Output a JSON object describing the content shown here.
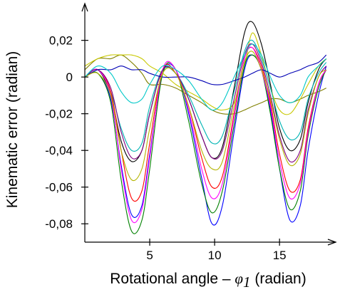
{
  "chart_data": {
    "type": "line",
    "title": "",
    "xlabel": {
      "prefix": "Rotational angle – ",
      "symbol": "φ",
      "subscript": "1",
      "suffix": " (radian)"
    },
    "ylabel": "Kinematic error (radian)",
    "xlim": [
      0,
      19
    ],
    "ylim": [
      -0.09,
      0.035
    ],
    "xticks": [
      5,
      10,
      15
    ],
    "xtick_labels": [
      "5",
      "10",
      "15"
    ],
    "yticks": [
      0.02,
      0,
      -0.02,
      -0.04,
      -0.06,
      -0.08
    ],
    "ytick_labels": [
      "0,02",
      "0",
      "-0,02",
      "-0,04",
      "-0,06",
      "-0,08"
    ],
    "grid": false,
    "legend": "none",
    "series": [
      {
        "color": "#000000",
        "x": [
          0,
          1,
          2,
          2.8,
          3.6,
          4.4,
          5,
          6,
          7,
          8,
          9,
          9.8,
          10.6,
          11.5,
          12.3,
          12.9,
          13.6,
          14.3,
          15,
          15.8,
          16.6,
          17.2,
          18,
          18.6
        ],
        "y": [
          0,
          0.004,
          -0.01,
          -0.035,
          -0.046,
          -0.04,
          -0.02,
          0.004,
          0.002,
          -0.012,
          -0.032,
          -0.044,
          -0.038,
          -0.006,
          0.024,
          0.03,
          0.018,
          -0.004,
          -0.028,
          -0.04,
          -0.034,
          -0.014,
          0.004,
          0.01
        ]
      },
      {
        "color": "#0000ff",
        "x": [
          0,
          1,
          2,
          2.8,
          3.6,
          4.4,
          5,
          6,
          7,
          8,
          9,
          9.8,
          10.6,
          11.5,
          12.3,
          12.9,
          13.6,
          14.3,
          15,
          15.8,
          16.6,
          17.2,
          18,
          18.6
        ],
        "y": [
          0,
          0.002,
          -0.012,
          -0.048,
          -0.075,
          -0.07,
          -0.042,
          0.002,
          0.004,
          -0.02,
          -0.055,
          -0.08,
          -0.07,
          -0.03,
          0.004,
          0.012,
          0.004,
          -0.018,
          -0.05,
          -0.078,
          -0.07,
          -0.04,
          -0.01,
          0.006
        ]
      },
      {
        "color": "#808000",
        "x": [
          0,
          1,
          2,
          2.8,
          3.6,
          4.4,
          5,
          6,
          7,
          8,
          9,
          9.8,
          10.6,
          11.5,
          12.3,
          12.9,
          13.6,
          14.3,
          15,
          15.8,
          16.6,
          17.2,
          18,
          18.6
        ],
        "y": [
          0.004,
          0.01,
          0.01,
          0.012,
          0.008,
          0.002,
          -0.004,
          -0.004,
          -0.006,
          -0.01,
          -0.014,
          -0.018,
          -0.02,
          -0.02,
          -0.018,
          -0.016,
          -0.014,
          -0.012,
          -0.012,
          -0.014,
          -0.012,
          -0.01,
          -0.008,
          -0.006
        ]
      },
      {
        "color": "#c8c800",
        "x": [
          0,
          1,
          2,
          2.8,
          3.6,
          4.4,
          5,
          6,
          7,
          8,
          9,
          9.8,
          10.6,
          11.5,
          12.3,
          12.9,
          13.6,
          14.3,
          15,
          15.8,
          16.6,
          17.2,
          18,
          18.6
        ],
        "y": [
          0.006,
          0.01,
          0.012,
          0.012,
          0.012,
          0.01,
          0.006,
          0.002,
          -0.004,
          -0.008,
          -0.012,
          -0.016,
          -0.018,
          -0.014,
          0.006,
          0.024,
          0.012,
          -0.006,
          -0.018,
          -0.02,
          -0.012,
          -0.004,
          0.006,
          0.01
        ]
      },
      {
        "color": "#00b4b4",
        "x": [
          0,
          1,
          2,
          2.8,
          3.6,
          4.4,
          5,
          6,
          7,
          8,
          9,
          9.8,
          10.6,
          11.5,
          12.3,
          12.9,
          13.6,
          14.3,
          15,
          15.8,
          16.6,
          17.2,
          18,
          18.6
        ],
        "y": [
          0,
          0.004,
          -0.008,
          -0.028,
          -0.04,
          -0.036,
          -0.016,
          0.004,
          0.002,
          -0.01,
          -0.026,
          -0.036,
          -0.032,
          -0.008,
          0.014,
          0.02,
          0.01,
          -0.006,
          -0.024,
          -0.034,
          -0.03,
          -0.012,
          0.002,
          0.008
        ]
      },
      {
        "color": "#008000",
        "x": [
          0,
          1,
          2,
          2.8,
          3.6,
          4.4,
          5,
          6,
          7,
          8,
          9,
          9.8,
          10.6,
          11.5,
          12.3,
          12.9,
          13.6,
          14.3,
          15,
          15.8,
          16.6,
          17.2,
          18,
          18.6
        ],
        "y": [
          0,
          0.002,
          -0.014,
          -0.056,
          -0.084,
          -0.078,
          -0.05,
          0.002,
          0.004,
          -0.024,
          -0.058,
          -0.074,
          -0.062,
          -0.026,
          0.006,
          0.012,
          0.004,
          -0.02,
          -0.05,
          -0.072,
          -0.062,
          -0.032,
          -0.006,
          0.004
        ]
      },
      {
        "color": "#ff0000",
        "x": [
          0,
          1,
          2,
          2.8,
          3.6,
          4.4,
          5,
          6,
          7,
          8,
          9,
          9.8,
          10.6,
          11.5,
          12.3,
          12.9,
          13.6,
          14.3,
          15,
          15.8,
          16.6,
          17.2,
          18,
          18.6
        ],
        "y": [
          0,
          0.004,
          -0.008,
          -0.04,
          -0.066,
          -0.062,
          -0.036,
          0.004,
          0.002,
          -0.016,
          -0.044,
          -0.06,
          -0.054,
          -0.02,
          0.01,
          0.016,
          0.006,
          -0.014,
          -0.042,
          -0.062,
          -0.056,
          -0.028,
          -0.004,
          0.004
        ]
      },
      {
        "color": "#ff00ff",
        "x": [
          0,
          1,
          2,
          2.8,
          3.6,
          4.4,
          5,
          6,
          7,
          8,
          9,
          9.8,
          10.6,
          11.5,
          12.3,
          12.9,
          13.6,
          14.3,
          15,
          15.8,
          16.6,
          17.2,
          18,
          18.6
        ],
        "y": [
          0,
          0.004,
          -0.01,
          -0.05,
          -0.078,
          -0.072,
          -0.044,
          0.004,
          0.004,
          -0.018,
          -0.05,
          -0.066,
          -0.058,
          -0.022,
          0.01,
          0.016,
          0.004,
          -0.016,
          -0.046,
          -0.066,
          -0.058,
          -0.03,
          -0.004,
          0.004
        ]
      },
      {
        "color": "#800080",
        "x": [
          0,
          1,
          2,
          2.8,
          3.6,
          4.4,
          5,
          6,
          7,
          8,
          9,
          9.8,
          10.6,
          11.5,
          12.3,
          12.9,
          13.6,
          14.3,
          15,
          15.8,
          16.6,
          17.2,
          18,
          18.6
        ],
        "y": [
          0,
          0.004,
          -0.006,
          -0.03,
          -0.044,
          -0.04,
          -0.02,
          0.004,
          0.002,
          -0.012,
          -0.032,
          -0.044,
          -0.04,
          -0.012,
          0.012,
          0.018,
          0.008,
          -0.01,
          -0.032,
          -0.046,
          -0.04,
          -0.018,
          0,
          0.006
        ]
      },
      {
        "color": "#0000b4",
        "x": [
          0,
          1,
          2,
          2.8,
          3.6,
          4.4,
          5,
          6,
          7,
          8,
          9,
          9.8,
          10.6,
          11.5,
          12.3,
          12.9,
          13.6,
          14.3,
          15,
          15.8,
          16.6,
          17.2,
          18,
          18.6
        ],
        "y": [
          0,
          0.004,
          0.004,
          0.006,
          0.004,
          0.004,
          0.002,
          0,
          0,
          0,
          -0.002,
          -0.004,
          -0.004,
          -0.002,
          0,
          0.002,
          0.004,
          0.002,
          0,
          0.002,
          0.004,
          0.006,
          0.008,
          0.012
        ]
      },
      {
        "color": "#b4b400",
        "x": [
          0,
          1,
          2,
          2.8,
          3.6,
          4.4,
          5,
          6,
          7,
          8,
          9,
          9.8,
          10.6,
          11.5,
          12.3,
          12.9,
          13.6,
          14.3,
          15,
          15.8,
          16.6,
          17.2,
          18,
          18.6
        ],
        "y": [
          0,
          0.002,
          -0.01,
          -0.04,
          -0.056,
          -0.05,
          -0.028,
          0.002,
          0.002,
          -0.016,
          -0.04,
          -0.05,
          -0.046,
          -0.016,
          0.008,
          0.014,
          0.004,
          -0.012,
          -0.034,
          -0.048,
          -0.042,
          -0.02,
          0,
          0.004
        ]
      },
      {
        "color": "#00c8c8",
        "x": [
          0,
          1,
          2,
          2.8,
          3.6,
          4.4,
          5,
          6,
          7,
          8,
          9,
          9.8,
          10.6,
          11.5,
          12.3,
          12.9,
          13.6,
          14.3,
          15,
          15.8,
          16.6,
          17.2,
          18,
          18.6
        ],
        "y": [
          0,
          0.006,
          0.002,
          -0.008,
          -0.014,
          -0.012,
          -0.004,
          0.006,
          0.004,
          -0.002,
          -0.012,
          -0.018,
          -0.014,
          0,
          0.012,
          0.018,
          0.012,
          0,
          -0.01,
          -0.014,
          -0.01,
          0,
          0.006,
          0.01
        ]
      }
    ]
  }
}
